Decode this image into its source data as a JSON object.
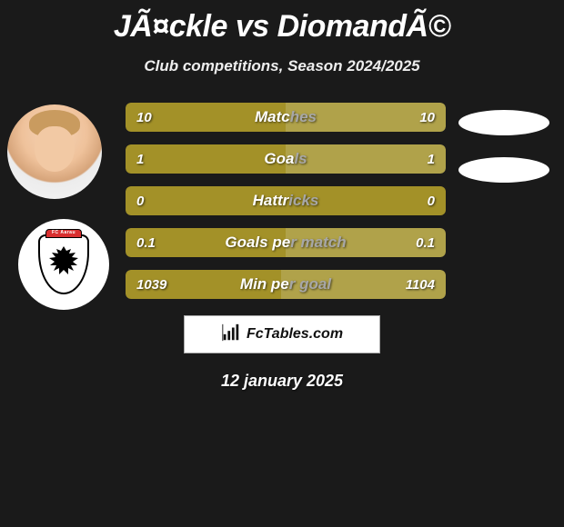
{
  "title": "JÃ¤ckle vs DiomandÃ©",
  "subtitle": "Club competitions, Season 2024/2025",
  "date": "12 january 2025",
  "colors": {
    "left_bar": "#a39128",
    "right_bar": "#b0a24a",
    "neutral_bar": "#a39128",
    "background": "#1a1a1a",
    "pill": "#ffffff",
    "watermark_border": "#aaaaaa"
  },
  "avatars": {
    "player1": "head-avatar",
    "player2_crest_label": "FC Aarau"
  },
  "stats": [
    {
      "label": "Matches",
      "left_val": "10",
      "right_val": "10",
      "left_pct": 50,
      "right_pct": 50
    },
    {
      "label": "Goals",
      "left_val": "1",
      "right_val": "1",
      "left_pct": 50,
      "right_pct": 50
    },
    {
      "label": "Hattricks",
      "left_val": "0",
      "right_val": "0",
      "left_pct": 100,
      "right_pct": 0
    },
    {
      "label": "Goals per match",
      "left_val": "0.1",
      "right_val": "0.1",
      "left_pct": 50,
      "right_pct": 50
    },
    {
      "label": "Min per goal",
      "left_val": "1039",
      "right_val": "1104",
      "left_pct": 48.5,
      "right_pct": 51.5
    }
  ],
  "watermark": {
    "text": "FcTables.com",
    "icon": "bar-chart-icon"
  },
  "typography": {
    "title_fontsize": 34,
    "subtitle_fontsize": 17,
    "bar_label_fontsize": 17,
    "bar_value_fontsize": 15,
    "date_fontsize": 18
  }
}
